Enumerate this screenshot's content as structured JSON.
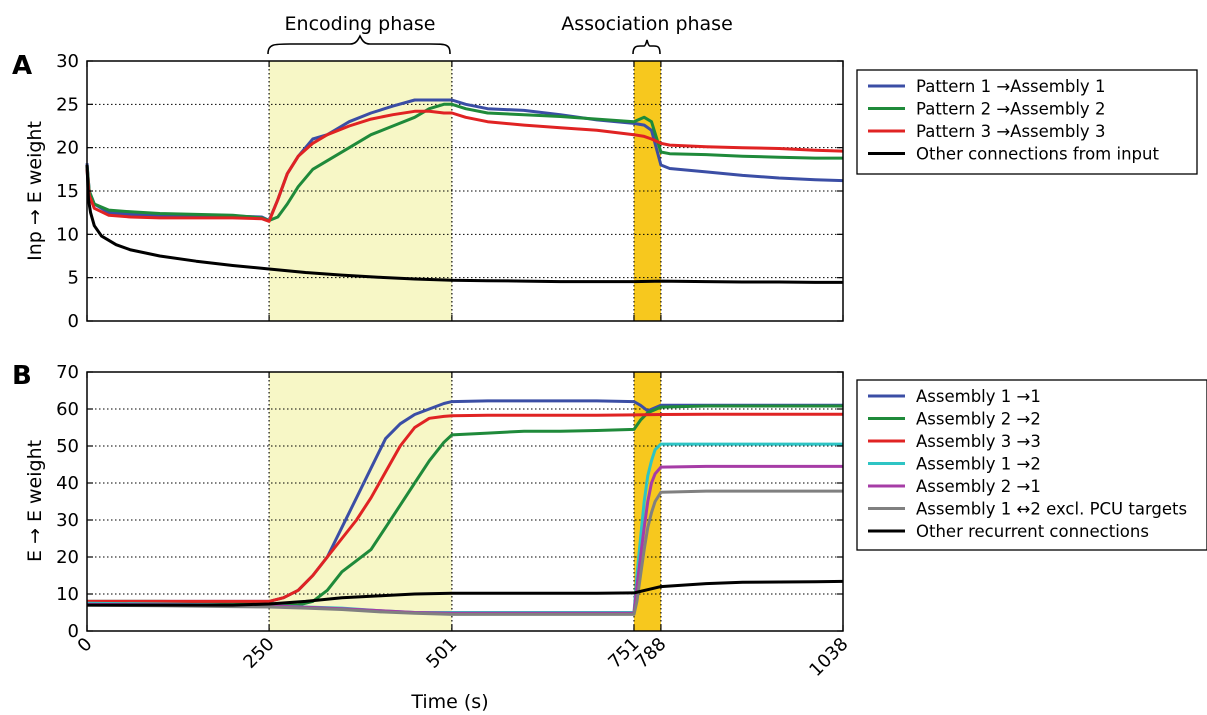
{
  "figure": {
    "encoding_label": "Encoding phase",
    "association_label": "Association phase",
    "xlabel": "Time (s)",
    "colors": {
      "encoding_shade": "#f7f7c6",
      "association_shade": "#f7c81e",
      "blue": "#3b4ea5",
      "green": "#1f8a3a",
      "red": "#e02323",
      "cyan": "#2ec4c4",
      "purple": "#a63ca6",
      "gray": "#808080",
      "black": "#000000"
    }
  },
  "chart_data": [
    {
      "type": "line",
      "panel": "A",
      "title": "",
      "xlabel": "",
      "ylabel": "Inp → E weight",
      "xlim": [
        0,
        1038
      ],
      "ylim": [
        0,
        30
      ],
      "yticks": [
        "0",
        "5",
        "10",
        "15",
        "20",
        "25",
        "30"
      ],
      "grid": true,
      "legend_position": "right",
      "shaded_regions": [
        {
          "x": [
            250,
            501
          ],
          "color": "#f7f7c6"
        },
        {
          "x": [
            751,
            788
          ],
          "color": "#f7c81e"
        }
      ],
      "series": [
        {
          "name": "Pattern 1 →Assembly 1",
          "color": "#3b4ea5",
          "x": [
            0,
            3,
            10,
            30,
            60,
            100,
            150,
            200,
            240,
            250,
            262,
            275,
            290,
            310,
            330,
            360,
            390,
            420,
            450,
            470,
            490,
            501,
            520,
            550,
            600,
            650,
            700,
            751,
            765,
            775,
            788,
            800,
            850,
            900,
            950,
            1000,
            1038
          ],
          "y": [
            18.2,
            15,
            13.5,
            12.5,
            12.3,
            12.1,
            12.1,
            12.1,
            12,
            11.6,
            14,
            17,
            19,
            21,
            21.5,
            23,
            24,
            24.8,
            25.5,
            25.5,
            25.5,
            25.5,
            25,
            24.5,
            24.3,
            23.8,
            23.2,
            22.8,
            22.6,
            22,
            18,
            17.6,
            17.2,
            16.8,
            16.5,
            16.3,
            16.2
          ]
        },
        {
          "name": "Pattern 2 →Assembly 2",
          "color": "#1f8a3a",
          "x": [
            0,
            3,
            10,
            30,
            60,
            100,
            150,
            200,
            240,
            250,
            262,
            275,
            290,
            310,
            330,
            360,
            390,
            420,
            450,
            470,
            490,
            501,
            520,
            550,
            600,
            650,
            700,
            751,
            765,
            775,
            788,
            800,
            850,
            900,
            950,
            1000,
            1038
          ],
          "y": [
            18,
            15,
            13.5,
            12.8,
            12.6,
            12.4,
            12.3,
            12.2,
            11.9,
            11.6,
            12,
            13.5,
            15.5,
            17.5,
            18.5,
            20,
            21.5,
            22.5,
            23.5,
            24.5,
            25,
            25,
            24.5,
            24,
            23.8,
            23.6,
            23.3,
            23,
            23.5,
            23,
            19.5,
            19.3,
            19.2,
            19,
            18.9,
            18.8,
            18.8
          ]
        },
        {
          "name": "Pattern 3 →Assembly 3",
          "color": "#e02323",
          "x": [
            0,
            3,
            10,
            30,
            60,
            100,
            150,
            200,
            240,
            250,
            262,
            275,
            290,
            310,
            330,
            360,
            390,
            420,
            450,
            470,
            490,
            501,
            520,
            550,
            600,
            650,
            700,
            751,
            765,
            775,
            788,
            800,
            850,
            900,
            950,
            1000,
            1038
          ],
          "y": [
            17.5,
            14.5,
            13,
            12.2,
            12,
            11.9,
            11.9,
            11.9,
            11.8,
            11.5,
            14,
            17,
            19,
            20.5,
            21.5,
            22.5,
            23.3,
            23.8,
            24.2,
            24.2,
            24,
            24,
            23.5,
            23,
            22.6,
            22.3,
            22,
            21.5,
            21.3,
            21,
            20.5,
            20.3,
            20.1,
            20,
            19.9,
            19.7,
            19.6
          ]
        },
        {
          "name": "Other connections from input",
          "color": "#000000",
          "x": [
            0,
            2,
            5,
            10,
            20,
            40,
            60,
            100,
            150,
            200,
            250,
            300,
            350,
            400,
            450,
            501,
            550,
            600,
            650,
            700,
            751,
            788,
            850,
            900,
            950,
            1000,
            1038
          ],
          "y": [
            18,
            14,
            12.5,
            11,
            9.8,
            8.8,
            8.2,
            7.5,
            6.9,
            6.4,
            6,
            5.6,
            5.3,
            5.05,
            4.85,
            4.7,
            4.65,
            4.6,
            4.55,
            4.55,
            4.55,
            4.6,
            4.55,
            4.5,
            4.5,
            4.45,
            4.45
          ]
        }
      ]
    },
    {
      "type": "line",
      "panel": "B",
      "title": "",
      "xlabel": "Time (s)",
      "ylabel": "E → E weight",
      "xlim": [
        0,
        1038
      ],
      "ylim": [
        0,
        70
      ],
      "yticks": [
        "0",
        "10",
        "20",
        "30",
        "40",
        "50",
        "60",
        "70"
      ],
      "xticks": [
        "0",
        "250",
        "501",
        "751",
        "788",
        "1038"
      ],
      "grid": true,
      "legend_position": "right",
      "shaded_regions": [
        {
          "x": [
            250,
            501
          ],
          "color": "#f7f7c6"
        },
        {
          "x": [
            751,
            788
          ],
          "color": "#f7c81e"
        }
      ],
      "series": [
        {
          "name": "Assembly 1 →1",
          "color": "#3b4ea5",
          "x": [
            0,
            100,
            200,
            250,
            270,
            290,
            310,
            330,
            350,
            370,
            390,
            410,
            430,
            450,
            470,
            490,
            501,
            550,
            600,
            650,
            700,
            751,
            760,
            770,
            788,
            850,
            900,
            1000,
            1038
          ],
          "y": [
            8,
            8,
            8,
            8,
            9,
            11,
            15,
            20,
            28,
            36,
            44,
            52,
            56,
            58.5,
            60,
            61.5,
            62,
            62.2,
            62.2,
            62.2,
            62.2,
            62,
            61,
            59.5,
            61,
            61,
            61,
            61,
            61
          ]
        },
        {
          "name": "Assembly 2 →2",
          "color": "#1f8a3a",
          "x": [
            0,
            100,
            200,
            250,
            270,
            290,
            310,
            330,
            350,
            370,
            390,
            410,
            430,
            450,
            470,
            490,
            501,
            550,
            600,
            650,
            700,
            751,
            760,
            770,
            788,
            850,
            900,
            1000,
            1038
          ],
          "y": [
            8,
            8,
            7.8,
            7.5,
            7,
            7,
            8,
            11,
            16,
            19,
            22,
            28,
            34,
            40,
            46,
            51,
            53,
            53.5,
            54,
            54,
            54.2,
            54.5,
            57,
            59,
            60.5,
            60.8,
            60.8,
            60.8,
            60.8
          ]
        },
        {
          "name": "Assembly 3 →3",
          "color": "#e02323",
          "x": [
            0,
            100,
            200,
            250,
            270,
            290,
            310,
            330,
            350,
            370,
            390,
            410,
            430,
            450,
            470,
            490,
            501,
            550,
            600,
            650,
            700,
            751,
            788,
            850,
            900,
            1000,
            1038
          ],
          "y": [
            8,
            8,
            8,
            8,
            9,
            11,
            15,
            20,
            25,
            30,
            36,
            43,
            50,
            55,
            57.5,
            58,
            58.2,
            58.3,
            58.3,
            58.3,
            58.3,
            58.4,
            58.5,
            58.6,
            58.6,
            58.6,
            58.6
          ]
        },
        {
          "name": "Assembly 1 →2",
          "color": "#2ec4c4",
          "x": [
            0,
            100,
            200,
            250,
            300,
            350,
            400,
            450,
            501,
            600,
            700,
            751,
            755,
            760,
            765,
            770,
            775,
            780,
            788,
            850,
            900,
            1000,
            1038
          ],
          "y": [
            7.5,
            7.3,
            7,
            6.8,
            6.5,
            6.2,
            5.5,
            5,
            5,
            5,
            5,
            5,
            15,
            25,
            35,
            42,
            46,
            49,
            50.5,
            50.5,
            50.5,
            50.5,
            50.5
          ]
        },
        {
          "name": "Assembly 2 →1",
          "color": "#a63ca6",
          "x": [
            0,
            100,
            200,
            250,
            300,
            350,
            400,
            450,
            501,
            600,
            700,
            751,
            755,
            760,
            765,
            770,
            775,
            780,
            788,
            850,
            900,
            1000,
            1038
          ],
          "y": [
            7.2,
            7.1,
            7,
            6.8,
            6.4,
            6,
            5.5,
            5,
            4.8,
            4.8,
            4.8,
            4.8,
            12,
            20,
            28,
            35,
            40,
            42.5,
            44.3,
            44.5,
            44.5,
            44.5,
            44.5
          ]
        },
        {
          "name": "Assembly 1 ↔2 excl. PCU targets",
          "color": "#808080",
          "x": [
            0,
            100,
            200,
            250,
            300,
            350,
            400,
            450,
            501,
            600,
            700,
            751,
            755,
            760,
            765,
            770,
            775,
            780,
            788,
            850,
            900,
            1000,
            1038
          ],
          "y": [
            7,
            6.8,
            6.6,
            6.5,
            6.2,
            5.8,
            5.2,
            4.8,
            4.5,
            4.5,
            4.5,
            4.5,
            8,
            15,
            22,
            28,
            32,
            35,
            37.5,
            37.8,
            37.8,
            37.8,
            37.8
          ]
        },
        {
          "name": "Other recurrent connections",
          "color": "#000000",
          "x": [
            0,
            100,
            200,
            250,
            300,
            350,
            400,
            450,
            501,
            600,
            700,
            751,
            788,
            850,
            900,
            1000,
            1038
          ],
          "y": [
            7,
            7,
            7,
            7.3,
            8,
            9,
            9.5,
            10,
            10.2,
            10.2,
            10.2,
            10.3,
            12,
            12.8,
            13.2,
            13.3,
            13.4
          ]
        }
      ]
    }
  ]
}
